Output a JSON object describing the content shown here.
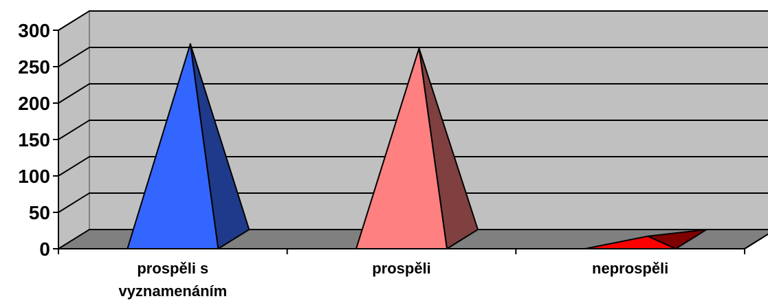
{
  "chart_data": {
    "type": "bar",
    "style": "3d-pyramid",
    "categories": [
      "prospěli s vyznamenáním",
      "prospěli",
      "neprospěli"
    ],
    "category_lines": [
      [
        "prospěli s",
        "vyznamenáním"
      ],
      [
        "prospěli"
      ],
      [
        "neprospěli"
      ]
    ],
    "values": [
      268,
      262,
      4
    ],
    "colors": [
      {
        "front": "#3366FF",
        "side": "#1F3A8A"
      },
      {
        "front": "#FF8080",
        "side": "#804040"
      },
      {
        "front": "#FF0000",
        "side": "#800000"
      }
    ],
    "y_ticks": [
      "0",
      "50",
      "100",
      "150",
      "200",
      "250",
      "300"
    ],
    "ylim": [
      0,
      300
    ],
    "grid": true,
    "legend": "none",
    "wall_color": "#C0C0C0",
    "floor_color": "#808080"
  }
}
